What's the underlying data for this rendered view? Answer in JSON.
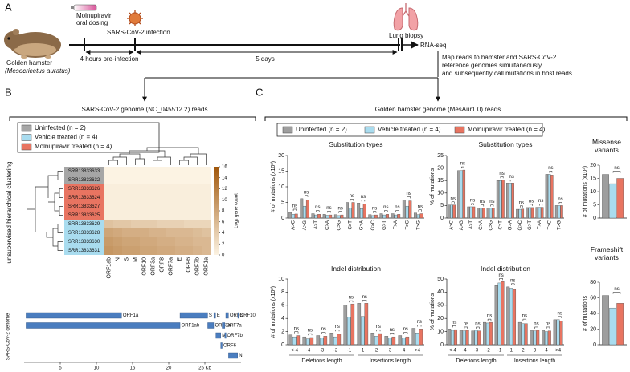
{
  "panel_a": {
    "label": "A",
    "dosing": [
      "Molnupiravir",
      "oral dosing"
    ],
    "infection": "SARS-CoV-2 infection",
    "biopsy": "Lung biopsy",
    "hamster_name": "Golden hamster",
    "hamster_species": "(Mesocricetus auratus)",
    "pre_infection": "4 hours pre-infection",
    "duration": "5 days",
    "rnaseq": "RNA-seq",
    "mapping": [
      "Map reads to hamster and SARS-CoV-2",
      "reference genomes simultaneously",
      "and subsequently call mutations in host reads"
    ]
  },
  "panel_b": {
    "label": "B",
    "title": "SARS-CoV-2 genome (NC_045512.2) reads",
    "side_label": "unsupervised hierarchical clustering",
    "groups": [
      {
        "name": "Uninfected (n = 2)",
        "color": "#a6a6a6"
      },
      {
        "name": "Vehicle treated (n = 4)",
        "color": "#a9dcef"
      },
      {
        "name": "Molnupiravir treated (n = 4)",
        "color": "#e87461"
      }
    ],
    "heatmap": {
      "rows": [
        {
          "label": "SRR13833633",
          "color": "#a6a6a6"
        },
        {
          "label": "SRR13833632",
          "color": "#a6a6a6"
        },
        {
          "label": "SRR13833626",
          "color": "#e87461"
        },
        {
          "label": "SRR13833624",
          "color": "#e87461"
        },
        {
          "label": "SRR13833627",
          "color": "#e87461"
        },
        {
          "label": "SRR13833625",
          "color": "#e87461"
        },
        {
          "label": "SRR13833629",
          "color": "#a9dcef"
        },
        {
          "label": "SRR13833628",
          "color": "#a9dcef"
        },
        {
          "label": "SRR13833630",
          "color": "#a9dcef"
        },
        {
          "label": "SRR13833631",
          "color": "#a9dcef"
        }
      ],
      "columns": [
        "ORF1ab",
        "N",
        "S",
        "M",
        "ORF10",
        "ORF3a",
        "ORF8",
        "ORF7a",
        "E",
        "ORF6",
        "ORF7b",
        "ORF1a"
      ],
      "values": [
        [
          0,
          0,
          0,
          0,
          0,
          0,
          0,
          0,
          0,
          0,
          0,
          0
        ],
        [
          0,
          0,
          0,
          0,
          0,
          0,
          0,
          0,
          0,
          0,
          0,
          0
        ],
        [
          0.5,
          0.5,
          0.5,
          0.5,
          0.5,
          0.5,
          0.5,
          0.5,
          0.5,
          0.5,
          0.5,
          0.5
        ],
        [
          0.5,
          0.5,
          0.5,
          0.5,
          0.5,
          0.5,
          0.5,
          0.5,
          0.5,
          0.5,
          0.5,
          0.5
        ],
        [
          0.5,
          0.5,
          0.5,
          0.5,
          0.5,
          0.5,
          0.5,
          0.5,
          0.5,
          0.5,
          0.5,
          0.5
        ],
        [
          0.5,
          0.5,
          0.5,
          0.5,
          0.5,
          0.5,
          0.5,
          0.5,
          0.5,
          0.5,
          0.5,
          0.5
        ],
        [
          5,
          4.5,
          4.5,
          4,
          4,
          4,
          3.5,
          3.5,
          3.5,
          3,
          3,
          3
        ],
        [
          8,
          7.5,
          7,
          7,
          7,
          6.5,
          6.5,
          6,
          6,
          6,
          5.5,
          5
        ],
        [
          9,
          8.5,
          8,
          8,
          7.5,
          7.5,
          7,
          7,
          6.5,
          6.5,
          6,
          6
        ],
        [
          9.5,
          9,
          8.5,
          8.5,
          8,
          8,
          7.5,
          7.5,
          7,
          7,
          6.5,
          6
        ]
      ],
      "colorbar": {
        "label": "Log₂ gene count",
        "range": [
          0,
          16
        ],
        "ticks": [
          0,
          2,
          4,
          6,
          8,
          10,
          12,
          14,
          16
        ],
        "colors": [
          "#fcf3e3",
          "#a0560a"
        ]
      }
    },
    "genome": {
      "label": "SARS-CoV-2 genome",
      "color": "#4a7dbf",
      "xlim": [
        0,
        30
      ],
      "xticks": [
        5,
        10,
        15,
        20,
        {
          "value": 25,
          "label": "25 Kb"
        }
      ],
      "genes": [
        {
          "label": "ORF1a",
          "start": 0.27,
          "end": 13.48
        },
        {
          "label": "ORF1ab",
          "start": 0.27,
          "end": 21.56
        },
        {
          "label": "S",
          "start": 21.56,
          "end": 25.38
        },
        {
          "label": "ORF3a",
          "start": 25.39,
          "end": 26.22
        },
        {
          "label": "E",
          "start": 26.24,
          "end": 26.47
        },
        {
          "label": "M",
          "start": 26.52,
          "end": 27.19
        },
        {
          "label": "ORF6",
          "start": 27.2,
          "end": 27.39
        },
        {
          "label": "ORF7a",
          "start": 27.39,
          "end": 27.76
        },
        {
          "label": "ORF7b",
          "start": 27.76,
          "end": 27.89
        },
        {
          "label": "ORF8",
          "start": 27.89,
          "end": 28.26
        },
        {
          "label": "N",
          "start": 28.27,
          "end": 29.53
        },
        {
          "label": "ORF10",
          "start": 29.56,
          "end": 29.67
        }
      ]
    }
  },
  "panel_c": {
    "label": "C",
    "title": "Golden hamster genome (MesAur1.0) reads",
    "legend": [
      {
        "name": "Uninfected (n = 2)",
        "color": "#9e9e9e"
      },
      {
        "name": "Vehicle treated (n = 4)",
        "color": "#a9dcef"
      },
      {
        "name": "Molnupiravir treated (n = 4)",
        "color": "#e87461"
      }
    ]
  },
  "chart_data": [
    {
      "type": "bar",
      "title": "Substitution types",
      "y_label": "# of mutations (x10³)",
      "annotation": "ns",
      "categories": [
        "A>C",
        "A>G",
        "A>T",
        "C>A",
        "C>G",
        "C>T",
        "G>A",
        "G>C",
        "G>T",
        "T>A",
        "T>C",
        "T>G"
      ],
      "series": [
        {
          "values": [
            1.8,
            6.2,
            1.4,
            1.2,
            1.1,
            5.0,
            4.8,
            1.1,
            1.4,
            1.4,
            5.8,
            1.6
          ]
        },
        {
          "values": [
            1.2,
            3.8,
            1.0,
            0.9,
            0.8,
            3.2,
            3.0,
            0.8,
            1.0,
            1.0,
            3.8,
            1.1
          ]
        },
        {
          "values": [
            1.3,
            5.8,
            1.2,
            1.0,
            1.0,
            5.0,
            4.5,
            1.0,
            1.2,
            1.2,
            5.5,
            1.4
          ]
        }
      ],
      "ylim": [
        0,
        20
      ],
      "yticks": [
        0,
        5,
        10,
        15,
        20
      ]
    },
    {
      "type": "bar",
      "title": "Substitution types",
      "y_label": "% of mutations",
      "annotation": "ns",
      "categories": [
        "A>C",
        "A>G",
        "A>T",
        "C>A",
        "C>G",
        "C>T",
        "G>A",
        "G>C",
        "G>T",
        "T>A",
        "T>C",
        "T>G"
      ],
      "series": [
        {
          "values": [
            5.2,
            19,
            4.5,
            4,
            4,
            15,
            14,
            3.5,
            4.2,
            4.3,
            17.5,
            5
          ]
        },
        {
          "values": [
            5.2,
            19,
            4.5,
            4,
            4,
            15,
            14,
            3.5,
            4.2,
            4.3,
            17.5,
            5
          ]
        },
        {
          "values": [
            5.2,
            19.2,
            4.5,
            4,
            4,
            15.3,
            14,
            3.6,
            4.2,
            4.3,
            17.2,
            5
          ]
        }
      ],
      "ylim": [
        0,
        25
      ],
      "yticks": [
        0,
        5,
        10,
        15,
        20,
        25
      ]
    },
    {
      "type": "bar",
      "title": "Missense variants",
      "y_label": "# of mutations (x10³)",
      "annotation": "ns",
      "series": [
        {
          "values": [
            16.5
          ]
        },
        {
          "values": [
            13
          ]
        },
        {
          "values": [
            15
          ]
        }
      ],
      "ylim": [
        0,
        20
      ],
      "yticks": [
        0,
        5,
        10,
        15,
        20
      ]
    },
    {
      "type": "bar",
      "title": "Indel distribution",
      "y_label": "# of mutations (x10²)",
      "annotation": "ns",
      "categories": [
        "<-4",
        "-4",
        "-3",
        "-2",
        "-1",
        "1",
        "2",
        "3",
        "4",
        ">4"
      ],
      "x_groups": [
        "Deletions length",
        "Insertions length"
      ],
      "series": [
        {
          "values": [
            1.5,
            1.2,
            1.4,
            1.8,
            6.0,
            6.3,
            1.8,
            1.3,
            1.4,
            2.5
          ]
        },
        {
          "values": [
            1.2,
            0.9,
            1.0,
            1.2,
            4.2,
            4.3,
            1.3,
            1.0,
            1.0,
            1.8
          ]
        },
        {
          "values": [
            1.4,
            1.1,
            1.3,
            1.6,
            6.2,
            6.3,
            1.7,
            1.2,
            1.2,
            2.4
          ]
        }
      ],
      "ylim": [
        0,
        10
      ],
      "yticks": [
        0,
        2,
        4,
        6,
        8,
        10
      ]
    },
    {
      "type": "bar",
      "title": "Indel distribution",
      "y_label": "% of mutations",
      "annotation": "ns",
      "categories": [
        "<-4",
        "-4",
        "-3",
        "-2",
        "-1",
        "1",
        "2",
        "3",
        "4",
        ">4"
      ],
      "x_groups": [
        "Deletions length",
        "Insertions length"
      ],
      "series": [
        {
          "values": [
            12,
            11,
            10.5,
            17,
            45,
            44,
            17,
            11,
            11,
            19
          ]
        },
        {
          "values": [
            11,
            10.5,
            11,
            16.5,
            47,
            43,
            16,
            10.5,
            10,
            19
          ]
        },
        {
          "values": [
            11.5,
            11,
            10.5,
            17,
            48,
            42,
            16,
            11,
            10.5,
            18
          ]
        }
      ],
      "ylim": [
        0,
        50
      ],
      "yticks": [
        0,
        10,
        20,
        30,
        40,
        50
      ]
    },
    {
      "type": "bar",
      "title": "Frameshift variants",
      "y_label": "# of mutations",
      "annotation": "ns",
      "series": [
        {
          "values": [
            63
          ]
        },
        {
          "values": [
            47
          ]
        },
        {
          "values": [
            53
          ]
        }
      ],
      "ylim": [
        0,
        80
      ],
      "yticks": [
        0,
        20,
        40,
        60,
        80
      ]
    }
  ]
}
